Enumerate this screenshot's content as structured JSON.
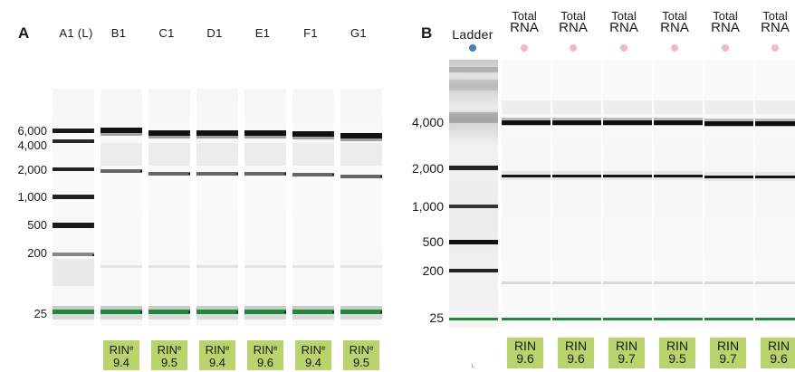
{
  "panel_a": {
    "letter": "A",
    "lanes": [
      {
        "header": "A1 (L)"
      },
      {
        "header": "B1",
        "rin_label": "RIN",
        "rin_sup": "e",
        "rin_value": "9.4"
      },
      {
        "header": "C1",
        "rin_label": "RIN",
        "rin_sup": "e",
        "rin_value": "9.5"
      },
      {
        "header": "D1",
        "rin_label": "RIN",
        "rin_sup": "e",
        "rin_value": "9.4"
      },
      {
        "header": "E1",
        "rin_label": "RIN",
        "rin_sup": "e",
        "rin_value": "9.6"
      },
      {
        "header": "F1",
        "rin_label": "RIN",
        "rin_sup": "e",
        "rin_value": "9.4"
      },
      {
        "header": "G1",
        "rin_label": "RIN",
        "rin_sup": "e",
        "rin_value": "9.5"
      }
    ],
    "size_labels": [
      "6,000",
      "4,000",
      "2,000",
      "1,000",
      "500",
      "200",
      "25"
    ]
  },
  "panel_b": {
    "letter": "B",
    "ladder_header": "Ladder",
    "sample_header_line1": "Total",
    "sample_header_line2": "RNA",
    "sample_count": 6,
    "size_labels": [
      "4,000",
      "2,000",
      "1,000",
      "500",
      "200",
      "25"
    ],
    "rin_label": "RIN",
    "rin_values": [
      "9.6",
      "9.6",
      "9.7",
      "9.5",
      "9.7",
      "9.6"
    ],
    "ladder_footnote": "L"
  },
  "colors": {
    "marker_green": "#1f8a3a",
    "rin_box": "#b9d46a",
    "ladder_dot": "#4a7fc7",
    "sample_dot": "#f4b8c8"
  }
}
